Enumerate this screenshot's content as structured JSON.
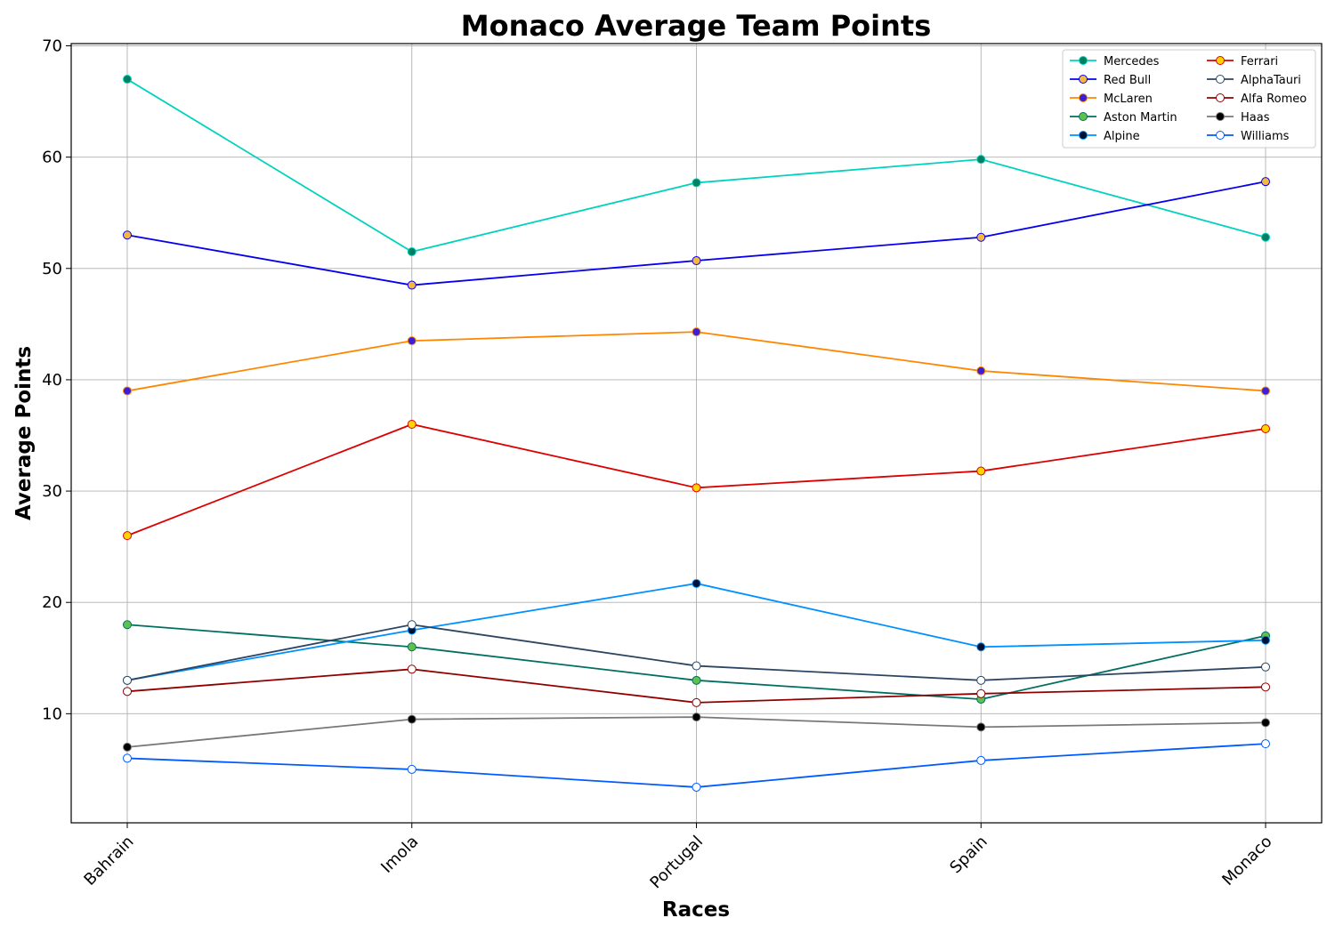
{
  "chart_data": {
    "type": "line",
    "title": "Monaco Average Team Points",
    "xlabel": "Races",
    "ylabel": "Average Points",
    "categories": [
      "Bahrain",
      "Imola",
      "Portugal",
      "Spain",
      "Monaco"
    ],
    "yticks": [
      "10",
      "20",
      "30",
      "40",
      "50",
      "60",
      "70"
    ],
    "ylim": [
      0.2,
      70.2
    ],
    "grid": true,
    "legend": {
      "placement": "top-right",
      "columns": 2
    },
    "series": [
      {
        "name": "Mercedes",
        "color": "#00d2be",
        "marker_fill": "#008060",
        "values": [
          67,
          51.5,
          57.7,
          59.8,
          52.8
        ]
      },
      {
        "name": "Red Bull",
        "color": "#0600ef",
        "marker_fill": "#f5b83d",
        "values": [
          53,
          48.5,
          50.7,
          52.8,
          57.8
        ]
      },
      {
        "name": "McLaren",
        "color": "#ff8700",
        "marker_fill": "#3b1fd6",
        "values": [
          39,
          43.5,
          44.3,
          40.8,
          39
        ]
      },
      {
        "name": "Aston Martin",
        "color": "#006f62",
        "marker_fill": "#5ec24a",
        "values": [
          18,
          16,
          13,
          11.3,
          17
        ]
      },
      {
        "name": "Alpine",
        "color": "#0090ff",
        "marker_fill": "#001030",
        "values": [
          13,
          17.5,
          21.7,
          16,
          16.6
        ]
      },
      {
        "name": "Ferrari",
        "color": "#dc0000",
        "marker_fill": "#ffd400",
        "values": [
          26,
          36,
          30.3,
          31.8,
          35.6
        ]
      },
      {
        "name": "AlphaTauri",
        "color": "#2b4562",
        "marker_fill": "#ffffff",
        "values": [
          13,
          18,
          14.3,
          13,
          14.2
        ]
      },
      {
        "name": "Alfa Romeo",
        "color": "#900000",
        "marker_fill": "#ffffff",
        "values": [
          12,
          14,
          11,
          11.8,
          12.4
        ]
      },
      {
        "name": "Haas",
        "color": "#787878",
        "marker_fill": "#000000",
        "values": [
          7,
          9.5,
          9.7,
          8.8,
          9.2
        ]
      },
      {
        "name": "Williams",
        "color": "#005aff",
        "marker_fill": "#ffffff",
        "values": [
          6,
          5,
          3.4,
          5.8,
          7.3
        ]
      }
    ]
  }
}
